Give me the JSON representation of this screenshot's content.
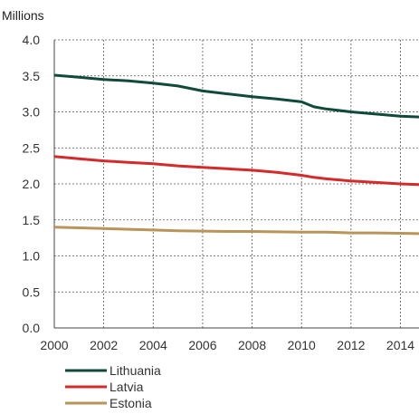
{
  "chart_data": {
    "type": "line",
    "unit_label": "Millions",
    "x": [
      2000,
      2001,
      2002,
      2003,
      2004,
      2005,
      2006,
      2007,
      2008,
      2009,
      2010,
      2010.5,
      2011,
      2012,
      2013,
      2014,
      2014.75
    ],
    "x_ticks": [
      2000,
      2002,
      2004,
      2006,
      2008,
      2010,
      2012,
      2014
    ],
    "y_ticks": [
      "4.0",
      "3.5",
      "3.0",
      "2.5",
      "2.0",
      "1.5",
      "1.0",
      "0.5",
      "0.0"
    ],
    "xlim": [
      2000,
      2014.75
    ],
    "ylim": [
      0,
      4
    ],
    "grid": true,
    "legend_position": "bottom-left",
    "series": [
      {
        "name": "Lithuania",
        "color": "#0f4a3a",
        "values": [
          3.51,
          3.48,
          3.45,
          3.43,
          3.4,
          3.36,
          3.29,
          3.25,
          3.21,
          3.18,
          3.14,
          3.07,
          3.04,
          3.0,
          2.97,
          2.94,
          2.93
        ]
      },
      {
        "name": "Latvia",
        "color": "#d42a2a",
        "values": [
          2.38,
          2.35,
          2.32,
          2.3,
          2.28,
          2.25,
          2.23,
          2.21,
          2.19,
          2.16,
          2.12,
          2.09,
          2.07,
          2.04,
          2.02,
          2.0,
          1.99
        ]
      },
      {
        "name": "Estonia",
        "color": "#b9955a",
        "values": [
          1.4,
          1.39,
          1.38,
          1.37,
          1.36,
          1.35,
          1.345,
          1.34,
          1.34,
          1.335,
          1.33,
          1.33,
          1.33,
          1.32,
          1.32,
          1.315,
          1.31
        ]
      }
    ]
  }
}
